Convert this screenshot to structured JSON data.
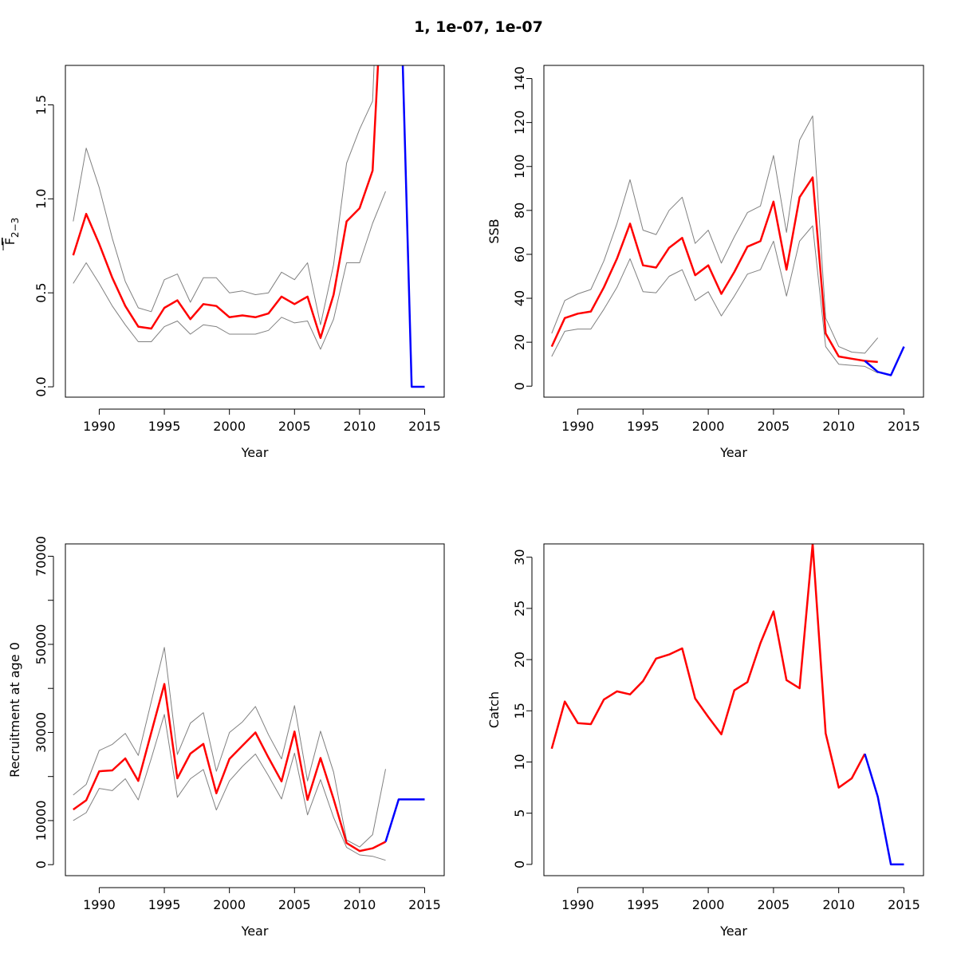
{
  "title": "1, 1e-07, 1e-07",
  "colors": {
    "estimate": "#ff0000",
    "projection": "#0000ff",
    "bounds": "#808080"
  },
  "chart_data": [
    {
      "id": "fbar",
      "type": "line",
      "xlabel": "Year",
      "ylabel_main": "F",
      "ylabel_sub": "2−3",
      "xlim": [
        1987.4,
        2016.5
      ],
      "ylim": [
        -0.055,
        1.71
      ],
      "xticks": [
        1990,
        1995,
        2000,
        2005,
        2010,
        2015
      ],
      "yticks": [
        0.0,
        0.5,
        1.0,
        1.5
      ],
      "ytick_labels": [
        "0.0",
        "0.5",
        "1.0",
        "1.5"
      ],
      "series": [
        {
          "role": "upper",
          "x": [
            1988,
            1989,
            1990,
            1991,
            1992,
            1993,
            1994,
            1995,
            1996,
            1997,
            1998,
            1999,
            2000,
            2001,
            2002,
            2003,
            2004,
            2005,
            2006,
            2007,
            2008,
            2009,
            2010,
            2011,
            2012
          ],
          "values": [
            0.88,
            1.27,
            1.06,
            0.79,
            0.56,
            0.42,
            0.4,
            0.57,
            0.6,
            0.45,
            0.58,
            0.58,
            0.5,
            0.51,
            0.49,
            0.5,
            0.61,
            0.57,
            0.66,
            0.33,
            0.65,
            1.19,
            1.37,
            1.52,
            3.2
          ]
        },
        {
          "role": "lower",
          "x": [
            1988,
            1989,
            1990,
            1991,
            1992,
            1993,
            1994,
            1995,
            1996,
            1997,
            1998,
            1999,
            2000,
            2001,
            2002,
            2003,
            2004,
            2005,
            2006,
            2007,
            2008,
            2009,
            2010,
            2011,
            2012
          ],
          "values": [
            0.55,
            0.66,
            0.55,
            0.43,
            0.33,
            0.24,
            0.24,
            0.32,
            0.35,
            0.28,
            0.33,
            0.32,
            0.28,
            0.28,
            0.28,
            0.3,
            0.37,
            0.34,
            0.35,
            0.2,
            0.36,
            0.66,
            0.66,
            0.87,
            1.04
          ]
        },
        {
          "role": "estimate",
          "x": [
            1988,
            1989,
            1990,
            1991,
            1992,
            1993,
            1994,
            1995,
            1996,
            1997,
            1998,
            1999,
            2000,
            2001,
            2002,
            2003,
            2004,
            2005,
            2006,
            2007,
            2008,
            2009,
            2010,
            2011,
            2012
          ],
          "values": [
            0.7,
            0.92,
            0.76,
            0.58,
            0.43,
            0.32,
            0.31,
            0.42,
            0.46,
            0.36,
            0.44,
            0.43,
            0.37,
            0.38,
            0.37,
            0.39,
            0.48,
            0.44,
            0.48,
            0.26,
            0.49,
            0.88,
            0.95,
            1.15,
            2.5
          ]
        },
        {
          "role": "projection",
          "x": [
            2013,
            2014,
            2015
          ],
          "values": [
            2.5,
            0.0,
            0.0
          ]
        }
      ]
    },
    {
      "id": "ssb",
      "type": "line",
      "xlabel": "Year",
      "ylabel_main": "SSB",
      "xlim": [
        1987.4,
        2016.5
      ],
      "ylim": [
        -5,
        146
      ],
      "xticks": [
        1990,
        1995,
        2000,
        2005,
        2010,
        2015
      ],
      "yticks": [
        0,
        20,
        40,
        60,
        80,
        100,
        120,
        140
      ],
      "ytick_labels": [
        "0",
        "20",
        "40",
        "60",
        "80",
        "100",
        "120",
        "140"
      ],
      "series": [
        {
          "role": "upper",
          "x": [
            1988,
            1989,
            1990,
            1991,
            1992,
            1993,
            1994,
            1995,
            1996,
            1997,
            1998,
            1999,
            2000,
            2001,
            2002,
            2003,
            2004,
            2005,
            2006,
            2007,
            2008,
            2009,
            2010,
            2011,
            2012,
            2013
          ],
          "values": [
            24,
            39,
            42,
            44,
            57,
            74,
            94,
            71,
            69,
            80,
            86,
            65,
            71,
            56,
            68,
            79,
            82,
            105,
            70,
            112,
            123,
            31,
            18,
            15.5,
            15,
            22
          ]
        },
        {
          "role": "lower",
          "x": [
            1988,
            1989,
            1990,
            1991,
            1992,
            1993,
            1994,
            1995,
            1996,
            1997,
            1998,
            1999,
            2000,
            2001,
            2002,
            2003,
            2004,
            2005,
            2006,
            2007,
            2008,
            2009,
            2010,
            2011,
            2012,
            2013
          ],
          "values": [
            13.5,
            25,
            26,
            26,
            35,
            45,
            58,
            43,
            42.5,
            50,
            53,
            39,
            43,
            32,
            41,
            51,
            53,
            66,
            41,
            66,
            73,
            18,
            10,
            9.5,
            9,
            6
          ]
        },
        {
          "role": "estimate",
          "x": [
            1988,
            1989,
            1990,
            1991,
            1992,
            1993,
            1994,
            1995,
            1996,
            1997,
            1998,
            1999,
            2000,
            2001,
            2002,
            2003,
            2004,
            2005,
            2006,
            2007,
            2008,
            2009,
            2010,
            2011,
            2012,
            2013
          ],
          "values": [
            18,
            31,
            33,
            34,
            45,
            58,
            74,
            55,
            54,
            63,
            67.5,
            50.5,
            55,
            42,
            52,
            63.5,
            66,
            84,
            53,
            86,
            95,
            24,
            13.5,
            12.5,
            11.5,
            11
          ]
        },
        {
          "role": "projection",
          "x": [
            2012,
            2013,
            2014,
            2015
          ],
          "values": [
            11.5,
            6.5,
            5,
            18
          ]
        }
      ]
    },
    {
      "id": "recruitment",
      "type": "line",
      "xlabel": "Year",
      "ylabel_main": "Recruitment at age 0",
      "xlim": [
        1987.4,
        2016.5
      ],
      "ylim": [
        -2500,
        72800
      ],
      "xticks": [
        1990,
        1995,
        2000,
        2005,
        2010,
        2015
      ],
      "yticks": [
        0,
        10000,
        30000,
        50000,
        70000
      ],
      "ytick_labels": [
        "0",
        "10000",
        "30000",
        "50000",
        "70000"
      ],
      "yticks_minor": [
        20000,
        40000,
        60000
      ],
      "series": [
        {
          "role": "upper",
          "x": [
            1988,
            1989,
            1990,
            1991,
            1992,
            1993,
            1994,
            1995,
            1996,
            1997,
            1998,
            1999,
            2000,
            2001,
            2002,
            2003,
            2004,
            2005,
            2006,
            2007,
            2008,
            2009,
            2010,
            2011,
            2012
          ],
          "values": [
            15800,
            18200,
            25900,
            27300,
            29800,
            24800,
            37000,
            49300,
            25000,
            32100,
            34500,
            21200,
            30000,
            32400,
            35900,
            29500,
            24000,
            36100,
            19000,
            30300,
            21000,
            5600,
            4000,
            6800,
            21700
          ]
        },
        {
          "role": "lower",
          "x": [
            1988,
            1989,
            1990,
            1991,
            1992,
            1993,
            1994,
            1995,
            1996,
            1997,
            1998,
            1999,
            2000,
            2001,
            2002,
            2003,
            2004,
            2005,
            2006,
            2007,
            2008,
            2009,
            2010,
            2011,
            2012
          ],
          "values": [
            10000,
            11800,
            17300,
            16800,
            19500,
            14700,
            24100,
            34100,
            15300,
            19500,
            21600,
            12400,
            19000,
            22300,
            25100,
            20200,
            14900,
            25300,
            11300,
            19300,
            10700,
            3900,
            2200,
            1900,
            1000
          ]
        },
        {
          "role": "estimate",
          "x": [
            1988,
            1989,
            1990,
            1991,
            1992,
            1993,
            1994,
            1995,
            1996,
            1997,
            1998,
            1999,
            2000,
            2001,
            2002,
            2003,
            2004,
            2005,
            2006,
            2007,
            2008,
            2009,
            2010,
            2011,
            2012
          ],
          "values": [
            12500,
            14600,
            21200,
            21400,
            24100,
            19000,
            30000,
            41000,
            19600,
            25200,
            27400,
            16200,
            24000,
            27000,
            30000,
            24300,
            18900,
            30200,
            14700,
            24200,
            14900,
            4900,
            3100,
            3700,
            5200
          ]
        },
        {
          "role": "projection",
          "x": [
            2012,
            2013,
            2014,
            2015
          ],
          "values": [
            5200,
            14800,
            14800,
            14800
          ]
        }
      ]
    },
    {
      "id": "catch",
      "type": "line",
      "xlabel": "Year",
      "ylabel_main": "Catch",
      "xlim": [
        1987.4,
        2016.5
      ],
      "ylim": [
        -1.1,
        31.3
      ],
      "xticks": [
        1990,
        1995,
        2000,
        2005,
        2010,
        2015
      ],
      "yticks": [
        0,
        5,
        10,
        15,
        20,
        25,
        30
      ],
      "ytick_labels": [
        "0",
        "5",
        "10",
        "15",
        "20",
        "25",
        "30"
      ],
      "series": [
        {
          "role": "estimate",
          "x": [
            1988,
            1989,
            1990,
            1991,
            1992,
            1993,
            1994,
            1995,
            1996,
            1997,
            1998,
            1999,
            2000,
            2001,
            2002,
            2003,
            2004,
            2005,
            2006,
            2007,
            2008,
            2009,
            2010,
            2011,
            2012
          ],
          "values": [
            11.3,
            15.9,
            13.8,
            13.7,
            16.1,
            16.9,
            16.6,
            17.9,
            20.1,
            20.5,
            21.1,
            16.2,
            14.4,
            12.7,
            17.0,
            17.8,
            21.6,
            24.7,
            18.0,
            17.2,
            31.3,
            12.8,
            7.5,
            8.4,
            10.8
          ]
        },
        {
          "role": "projection",
          "x": [
            2012,
            2013,
            2014,
            2015
          ],
          "values": [
            10.8,
            6.6,
            0,
            0
          ]
        }
      ]
    }
  ]
}
